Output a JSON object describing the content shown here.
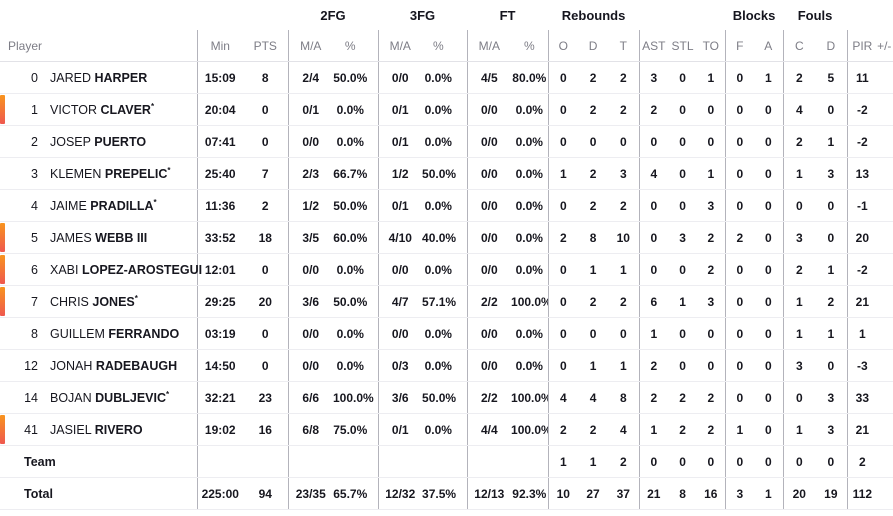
{
  "colors": {
    "on_court_top": "#f8941e",
    "on_court_bottom": "#ef584f",
    "divider_vertical": "#b3b3bb",
    "divider_horizontal": "#ededf1",
    "header_text": "#7d7d86",
    "text": "#17171f"
  },
  "table": {
    "group_headers": [
      {
        "label": "",
        "span": 3
      },
      {
        "label": "2FG",
        "span": 2
      },
      {
        "label": "3FG",
        "span": 2
      },
      {
        "label": "FT",
        "span": 2
      },
      {
        "label": "Rebounds",
        "span": 3
      },
      {
        "label": "",
        "span": 3
      },
      {
        "label": "Blocks",
        "span": 2
      },
      {
        "label": "Fouls",
        "span": 2
      },
      {
        "label": "",
        "span": 2
      }
    ],
    "columns": [
      "Player",
      "Min",
      "PTS",
      "M/A",
      "%",
      "M/A",
      "%",
      "M/A",
      "%",
      "O",
      "D",
      "T",
      "AST",
      "STL",
      "TO",
      "F",
      "A",
      "C",
      "D",
      "PIR",
      "+/-"
    ],
    "rows": [
      {
        "number": "0",
        "first_name": "JARED",
        "last_name": "HARPER",
        "starter": false,
        "on_court": false,
        "stats": [
          "15:09",
          "8",
          "2/4",
          "50.0%",
          "0/0",
          "0.0%",
          "4/5",
          "80.0%",
          "0",
          "2",
          "2",
          "3",
          "0",
          "1",
          "0",
          "1",
          "2",
          "5",
          "11",
          ""
        ]
      },
      {
        "number": "1",
        "first_name": "VICTOR",
        "last_name": "CLAVER",
        "starter": true,
        "on_court": true,
        "stats": [
          "20:04",
          "0",
          "0/1",
          "0.0%",
          "0/1",
          "0.0%",
          "0/0",
          "0.0%",
          "0",
          "2",
          "2",
          "2",
          "0",
          "0",
          "0",
          "0",
          "4",
          "0",
          "-2",
          ""
        ]
      },
      {
        "number": "2",
        "first_name": "JOSEP",
        "last_name": "PUERTO",
        "starter": false,
        "on_court": false,
        "stats": [
          "07:41",
          "0",
          "0/0",
          "0.0%",
          "0/1",
          "0.0%",
          "0/0",
          "0.0%",
          "0",
          "0",
          "0",
          "0",
          "0",
          "0",
          "0",
          "0",
          "2",
          "1",
          "-2",
          ""
        ]
      },
      {
        "number": "3",
        "first_name": "KLEMEN",
        "last_name": "PREPELIC",
        "starter": true,
        "on_court": false,
        "stats": [
          "25:40",
          "7",
          "2/3",
          "66.7%",
          "1/2",
          "50.0%",
          "0/0",
          "0.0%",
          "1",
          "2",
          "3",
          "4",
          "0",
          "1",
          "0",
          "0",
          "1",
          "3",
          "13",
          ""
        ]
      },
      {
        "number": "4",
        "first_name": "JAIME",
        "last_name": "PRADILLA",
        "starter": true,
        "on_court": false,
        "stats": [
          "11:36",
          "2",
          "1/2",
          "50.0%",
          "0/1",
          "0.0%",
          "0/0",
          "0.0%",
          "0",
          "2",
          "2",
          "0",
          "0",
          "3",
          "0",
          "0",
          "0",
          "0",
          "-1",
          ""
        ]
      },
      {
        "number": "5",
        "first_name": "JAMES",
        "last_name": "WEBB III",
        "starter": false,
        "on_court": true,
        "stats": [
          "33:52",
          "18",
          "3/5",
          "60.0%",
          "4/10",
          "40.0%",
          "0/0",
          "0.0%",
          "2",
          "8",
          "10",
          "0",
          "3",
          "2",
          "2",
          "0",
          "3",
          "0",
          "20",
          ""
        ]
      },
      {
        "number": "6",
        "first_name": "XABI",
        "last_name": "LOPEZ-AROSTEGUI",
        "starter": false,
        "on_court": true,
        "stats": [
          "12:01",
          "0",
          "0/0",
          "0.0%",
          "0/0",
          "0.0%",
          "0/0",
          "0.0%",
          "0",
          "1",
          "1",
          "0",
          "0",
          "2",
          "0",
          "0",
          "2",
          "1",
          "-2",
          ""
        ]
      },
      {
        "number": "7",
        "first_name": "CHRIS",
        "last_name": "JONES",
        "starter": true,
        "on_court": true,
        "stats": [
          "29:25",
          "20",
          "3/6",
          "50.0%",
          "4/7",
          "57.1%",
          "2/2",
          "100.0%",
          "0",
          "2",
          "2",
          "6",
          "1",
          "3",
          "0",
          "0",
          "1",
          "2",
          "21",
          ""
        ]
      },
      {
        "number": "8",
        "first_name": "GUILLEM",
        "last_name": "FERRANDO",
        "starter": false,
        "on_court": false,
        "stats": [
          "03:19",
          "0",
          "0/0",
          "0.0%",
          "0/0",
          "0.0%",
          "0/0",
          "0.0%",
          "0",
          "0",
          "0",
          "1",
          "0",
          "0",
          "0",
          "0",
          "1",
          "1",
          "1",
          ""
        ]
      },
      {
        "number": "12",
        "first_name": "JONAH",
        "last_name": "RADEBAUGH",
        "starter": false,
        "on_court": false,
        "stats": [
          "14:50",
          "0",
          "0/0",
          "0.0%",
          "0/3",
          "0.0%",
          "0/0",
          "0.0%",
          "0",
          "1",
          "1",
          "2",
          "0",
          "0",
          "0",
          "0",
          "3",
          "0",
          "-3",
          ""
        ]
      },
      {
        "number": "14",
        "first_name": "BOJAN",
        "last_name": "DUBLJEVIC",
        "starter": true,
        "on_court": false,
        "stats": [
          "32:21",
          "23",
          "6/6",
          "100.0%",
          "3/6",
          "50.0%",
          "2/2",
          "100.0%",
          "4",
          "4",
          "8",
          "2",
          "2",
          "2",
          "0",
          "0",
          "0",
          "3",
          "33",
          ""
        ]
      },
      {
        "number": "41",
        "first_name": "JASIEL",
        "last_name": "RIVERO",
        "starter": false,
        "on_court": true,
        "stats": [
          "19:02",
          "16",
          "6/8",
          "75.0%",
          "0/1",
          "0.0%",
          "4/4",
          "100.0%",
          "2",
          "2",
          "4",
          "1",
          "2",
          "2",
          "1",
          "0",
          "1",
          "3",
          "21",
          ""
        ]
      }
    ],
    "team_row": {
      "label": "Team",
      "stats": [
        "",
        "",
        "",
        "",
        "",
        "",
        "",
        "",
        "1",
        "1",
        "2",
        "0",
        "0",
        "0",
        "0",
        "0",
        "0",
        "0",
        "2",
        ""
      ]
    },
    "total_row": {
      "label": "Total",
      "stats": [
        "225:00",
        "94",
        "23/35",
        "65.7%",
        "12/32",
        "37.5%",
        "12/13",
        "92.3%",
        "10",
        "27",
        "37",
        "21",
        "8",
        "16",
        "3",
        "1",
        "20",
        "19",
        "112",
        ""
      ]
    }
  }
}
